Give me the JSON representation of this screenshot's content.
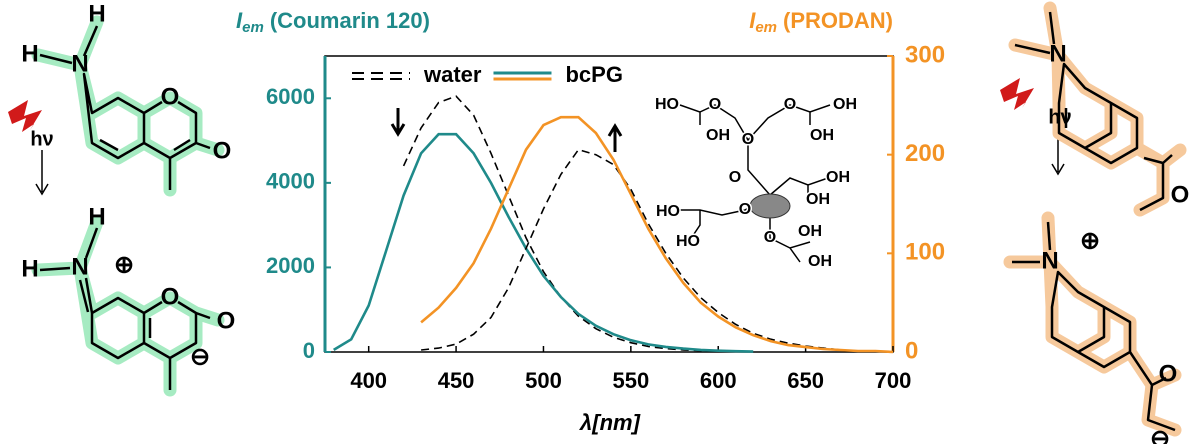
{
  "chart_data": {
    "type": "line",
    "y_label": {
      "symbol": "I",
      "subscript": "em",
      "text": "(Coumarin 120)"
    },
    "y2_label": {
      "symbol": "I",
      "subscript": "em",
      "text": "(PRODAN)"
    },
    "x_label": "λ[nm]",
    "x": [
      380,
      390,
      400,
      410,
      420,
      430,
      440,
      450,
      460,
      470,
      480,
      490,
      500,
      510,
      520,
      530,
      540,
      550,
      560,
      570,
      580,
      590,
      600,
      610,
      620,
      630,
      640,
      650,
      660,
      670,
      680,
      690,
      700
    ],
    "xlim": [
      375,
      700
    ],
    "xticks": [
      400,
      450,
      500,
      550,
      600,
      650,
      700
    ],
    "ylim": [
      0,
      7000
    ],
    "yticks": [
      0,
      2000,
      4000,
      6000
    ],
    "y2lim": [
      0,
      300
    ],
    "y2ticks": [
      0,
      100,
      200,
      300
    ],
    "axis_color": "#1f8a8a",
    "axis2_color": "#f39325",
    "series": [
      {
        "name": "water",
        "color": "#000000",
        "style": "dashed",
        "values": [
          null,
          null,
          null,
          null,
          4400,
          5300,
          5900,
          6050,
          5600,
          4700,
          3700,
          2700,
          1900,
          1300,
          850,
          550,
          350,
          220,
          130,
          80,
          50,
          30,
          15,
          null,
          null,
          null,
          null,
          null,
          null,
          null,
          null,
          null,
          null
        ]
      },
      {
        "name": "bcPG",
        "color": "#1f8a8a",
        "style": "solid",
        "values": [
          50,
          300,
          1100,
          2400,
          3700,
          4700,
          5150,
          5150,
          4700,
          4000,
          3200,
          2450,
          1800,
          1300,
          900,
          620,
          420,
          280,
          180,
          120,
          80,
          50,
          30,
          20,
          10,
          null,
          null,
          null,
          null,
          null,
          null,
          null,
          null
        ]
      },
      {
        "name": "water",
        "color": "#000000",
        "style": "dashed",
        "axis": "y2",
        "values": [
          null,
          null,
          null,
          null,
          null,
          2,
          4,
          8,
          18,
          35,
          65,
          105,
          145,
          180,
          205,
          200,
          190,
          165,
          130,
          100,
          75,
          55,
          40,
          28,
          19,
          13,
          9,
          6,
          4,
          2,
          1,
          0.5,
          0
        ]
      },
      {
        "name": "bcPG",
        "color": "#f39325",
        "style": "solid",
        "axis": "y2",
        "values": [
          null,
          null,
          null,
          null,
          null,
          30,
          45,
          65,
          90,
          125,
          165,
          205,
          230,
          238,
          238,
          222,
          195,
          160,
          125,
          95,
          70,
          50,
          36,
          25,
          17,
          11,
          7,
          5,
          3,
          2,
          1,
          1,
          0
        ]
      }
    ]
  },
  "structures": [
    {
      "labels": [
        "H",
        "H",
        "N",
        "O",
        "O"
      ]
    },
    {
      "labels": [
        "H",
        "H",
        "N",
        "⊕",
        "O",
        "O",
        "⊖"
      ]
    },
    {
      "labels": [
        "N",
        "O"
      ]
    },
    {
      "labels": [
        "N",
        "⊕",
        "O",
        "⊖"
      ]
    },
    {
      "labels": [
        "HO",
        "OH",
        "O",
        "O",
        "OH",
        "OH",
        "O",
        "O",
        "OH",
        "HO",
        "O",
        "OH",
        "HO",
        "OH",
        "O",
        "OH"
      ]
    }
  ],
  "excitation": [
    "hν",
    "hν"
  ]
}
